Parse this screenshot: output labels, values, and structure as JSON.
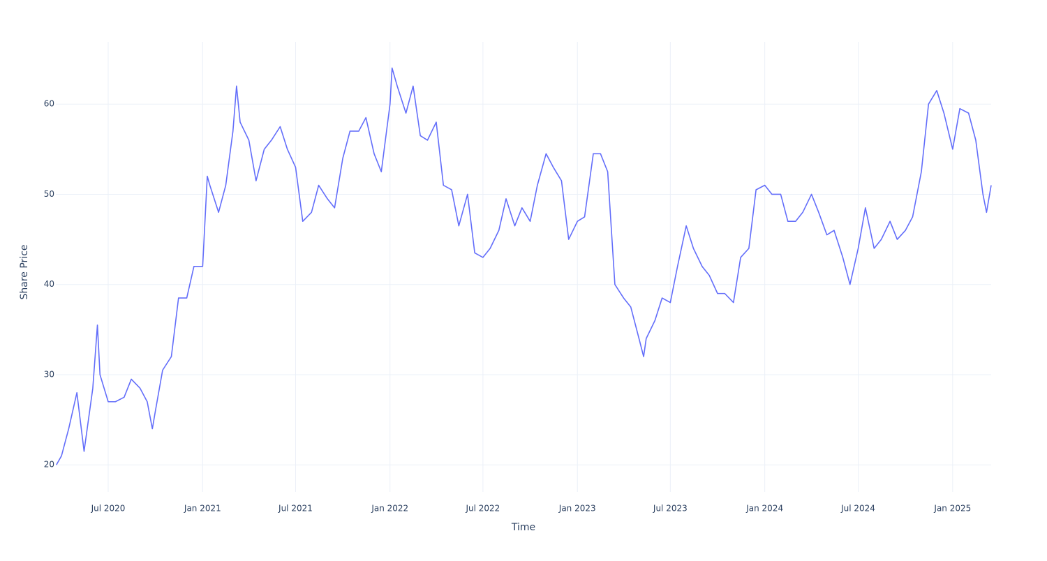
{
  "chart_data": {
    "type": "line",
    "x_label": "Time",
    "y_label": "Share Price",
    "x": [
      "2020-03-22",
      "2020-04-01",
      "2020-04-15",
      "2020-05-01",
      "2020-05-15",
      "2020-06-01",
      "2020-06-10",
      "2020-06-15",
      "2020-07-01",
      "2020-07-15",
      "2020-08-01",
      "2020-08-15",
      "2020-09-01",
      "2020-09-15",
      "2020-09-25",
      "2020-10-01",
      "2020-10-15",
      "2020-11-01",
      "2020-11-15",
      "2020-12-01",
      "2020-12-15",
      "2021-01-01",
      "2021-01-10",
      "2021-01-15",
      "2021-02-01",
      "2021-02-15",
      "2021-03-01",
      "2021-03-08",
      "2021-03-15",
      "2021-04-01",
      "2021-04-15",
      "2021-05-01",
      "2021-05-15",
      "2021-06-01",
      "2021-06-15",
      "2021-07-01",
      "2021-07-15",
      "2021-08-01",
      "2021-08-15",
      "2021-09-01",
      "2021-09-15",
      "2021-10-01",
      "2021-10-15",
      "2021-11-01",
      "2021-11-15",
      "2021-12-01",
      "2021-12-15",
      "2022-01-01",
      "2022-01-05",
      "2022-01-15",
      "2022-02-01",
      "2022-02-15",
      "2022-03-01",
      "2022-03-15",
      "2022-04-01",
      "2022-04-15",
      "2022-05-01",
      "2022-05-15",
      "2022-06-01",
      "2022-06-15",
      "2022-07-01",
      "2022-07-15",
      "2022-08-01",
      "2022-08-15",
      "2022-09-01",
      "2022-09-15",
      "2022-10-01",
      "2022-10-15",
      "2022-11-01",
      "2022-11-15",
      "2022-12-01",
      "2022-12-15",
      "2023-01-01",
      "2023-01-15",
      "2023-02-01",
      "2023-02-15",
      "2023-03-01",
      "2023-03-15",
      "2023-04-01",
      "2023-04-15",
      "2023-05-01",
      "2023-05-10",
      "2023-05-15",
      "2023-06-01",
      "2023-06-15",
      "2023-07-01",
      "2023-07-15",
      "2023-08-01",
      "2023-08-15",
      "2023-09-01",
      "2023-09-15",
      "2023-10-01",
      "2023-10-15",
      "2023-11-01",
      "2023-11-15",
      "2023-12-01",
      "2023-12-15",
      "2024-01-01",
      "2024-01-15",
      "2024-02-01",
      "2024-02-15",
      "2024-03-01",
      "2024-03-15",
      "2024-04-01",
      "2024-04-15",
      "2024-05-01",
      "2024-05-15",
      "2024-06-01",
      "2024-06-15",
      "2024-07-01",
      "2024-07-15",
      "2024-08-01",
      "2024-08-15",
      "2024-09-01",
      "2024-09-15",
      "2024-10-01",
      "2024-10-15",
      "2024-11-01",
      "2024-11-15",
      "2024-12-01",
      "2024-12-15",
      "2025-01-01",
      "2025-01-15",
      "2025-02-01",
      "2025-02-15",
      "2025-03-01",
      "2025-03-08",
      "2025-03-17"
    ],
    "series": [
      {
        "color": "#636efa",
        "values": [
          20,
          21,
          24,
          28,
          21.5,
          28.5,
          35.5,
          30,
          27,
          27,
          27.5,
          29.5,
          28.5,
          27,
          24,
          26,
          30.5,
          32,
          38.5,
          38.5,
          42,
          42,
          52,
          51,
          48,
          51,
          57,
          62,
          58,
          56,
          51.5,
          55,
          56,
          57.5,
          55,
          53,
          47,
          48,
          51,
          49.5,
          48.5,
          54,
          57,
          57,
          58.5,
          54.5,
          52.5,
          60,
          64,
          62,
          59,
          62,
          56.5,
          56,
          58,
          51,
          50.5,
          46.5,
          50,
          43.5,
          43,
          44,
          46,
          49.5,
          46.5,
          48.5,
          47,
          51,
          54.5,
          53,
          51.5,
          45,
          47,
          47.5,
          54.5,
          54.5,
          52.5,
          40,
          38.5,
          37.5,
          34,
          32,
          34,
          36,
          38.5,
          38,
          42,
          46.5,
          44,
          42,
          41,
          39,
          39,
          38,
          43,
          44,
          50.5,
          51,
          50,
          50,
          47,
          47,
          48,
          50,
          48,
          45.5,
          46,
          43,
          40,
          44,
          48.5,
          44,
          45,
          47,
          45,
          46,
          47.5,
          52.5,
          60,
          61.5,
          59,
          55,
          59.5,
          59,
          56,
          50,
          48,
          51
        ]
      }
    ],
    "xlim": [
      "2020-03-21",
      "2025-03-17"
    ],
    "xticks": [
      {
        "value": "2020-07-01",
        "label": "Jul 2020"
      },
      {
        "value": "2021-01-01",
        "label": "Jan 2021"
      },
      {
        "value": "2021-07-01",
        "label": "Jul 2021"
      },
      {
        "value": "2022-01-01",
        "label": "Jan 2022"
      },
      {
        "value": "2022-07-01",
        "label": "Jul 2022"
      },
      {
        "value": "2023-01-01",
        "label": "Jan 2023"
      },
      {
        "value": "2023-07-01",
        "label": "Jul 2023"
      },
      {
        "value": "2024-01-01",
        "label": "Jan 2024"
      },
      {
        "value": "2024-07-01",
        "label": "Jul 2024"
      },
      {
        "value": "2025-01-01",
        "label": "Jan 2025"
      }
    ],
    "ylim": [
      17,
      66.9
    ],
    "yticks": [
      20,
      30,
      40,
      50,
      60
    ],
    "grid": true
  }
}
